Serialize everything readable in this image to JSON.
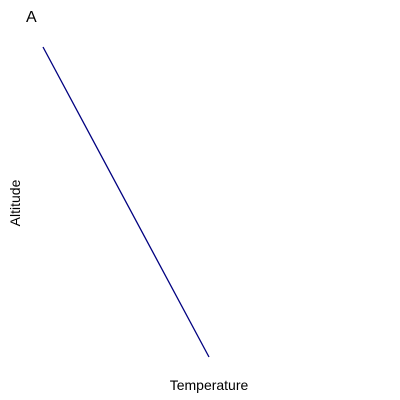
{
  "chart_data": {
    "type": "line",
    "title": "A",
    "xlabel": "Temperature",
    "ylabel": "Altitude",
    "grid": false,
    "legend": "none",
    "series": [
      {
        "color": "#000080",
        "points": [
          {
            "x": 0,
            "y": 1
          },
          {
            "x": 1,
            "y": 0
          }
        ]
      }
    ],
    "xlim": [
      0,
      1
    ],
    "ylim": [
      0,
      1
    ]
  }
}
